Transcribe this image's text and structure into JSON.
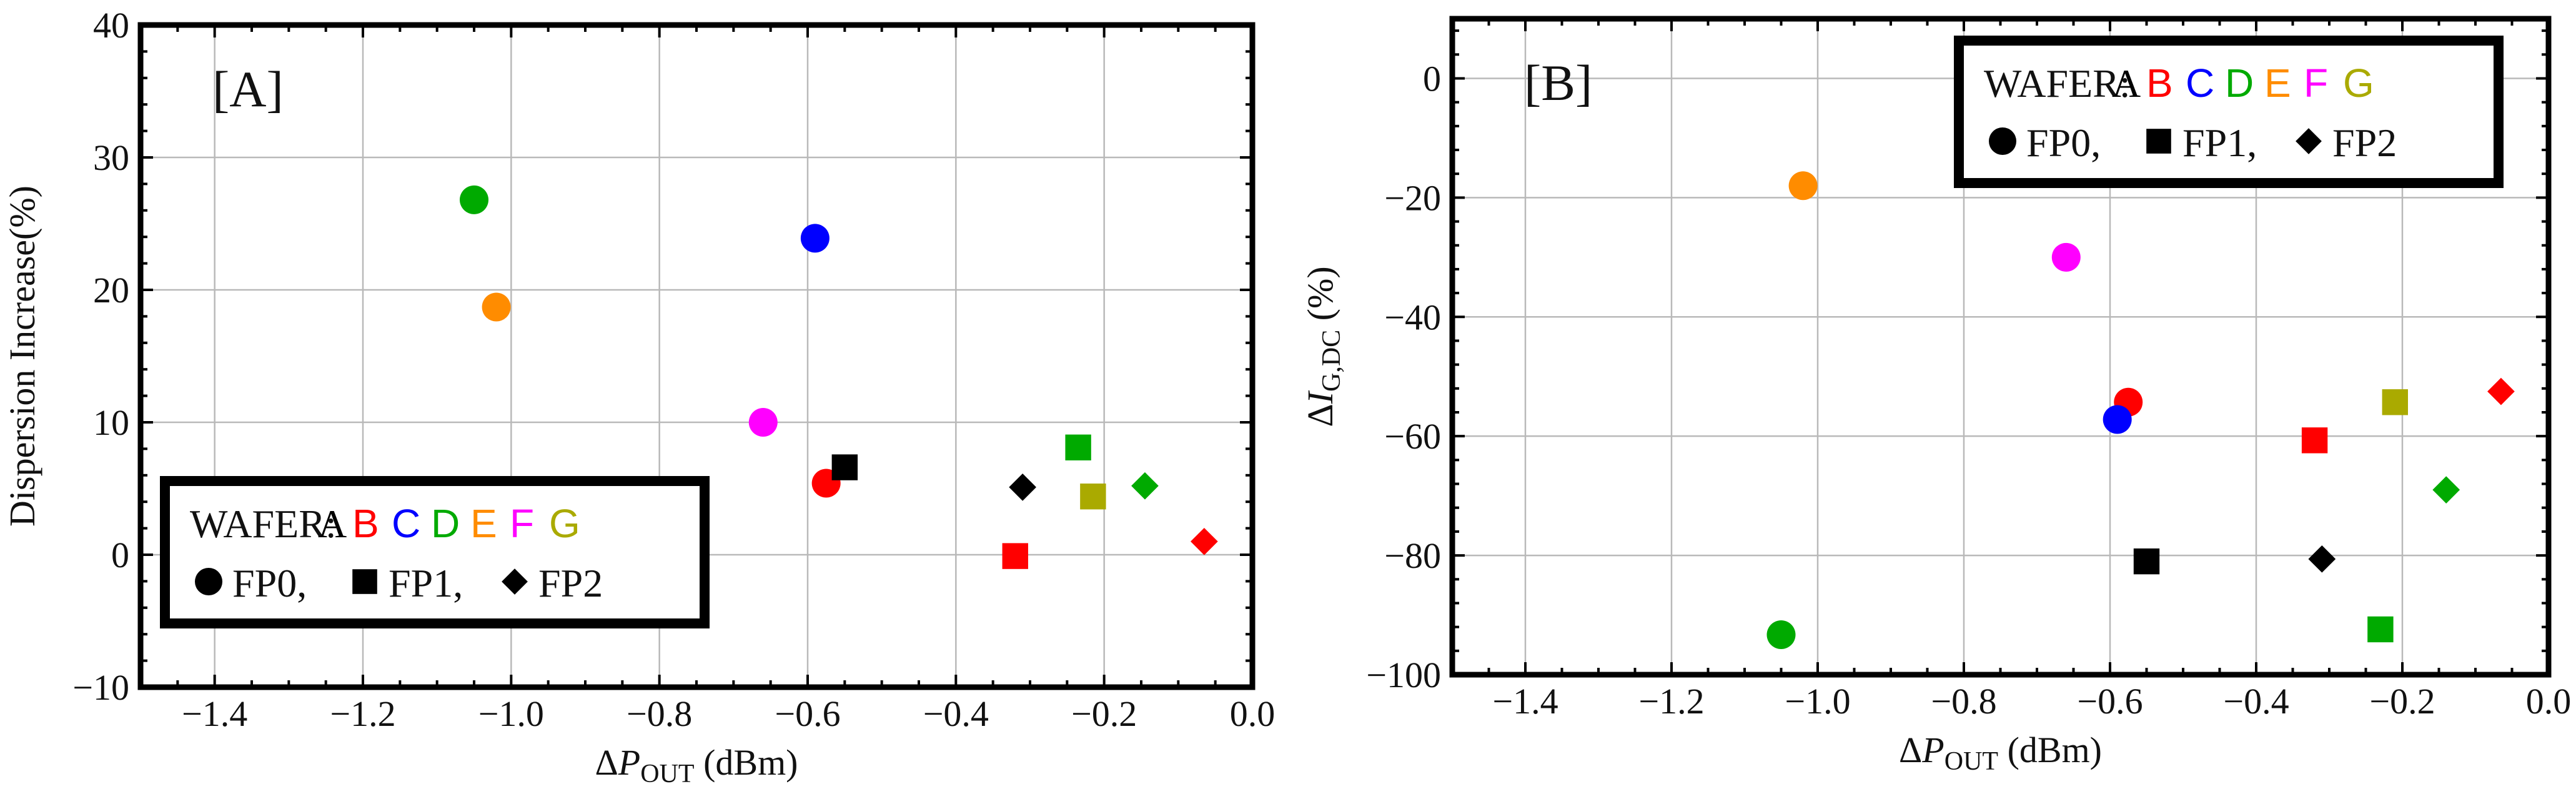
{
  "chart_data": [
    {
      "type": "scatter",
      "panel_label": "[A]",
      "xlabel": {
        "prefix": "ΔP",
        "sub": "OUT",
        "suffix": " (dBm)"
      },
      "ylabel": "Dispersion Increase(%)",
      "xlim": [
        -1.5,
        0.0
      ],
      "ylim": [
        -10,
        40
      ],
      "xticks": [
        -1.4,
        -1.2,
        -1.0,
        -0.8,
        -0.6,
        -0.4,
        -0.2,
        0.0
      ],
      "xtick_labels": [
        "−1.4",
        "−1.2",
        "−1.0",
        "−0.8",
        "−0.6",
        "−0.4",
        "−0.2",
        "0.0"
      ],
      "yticks": [
        -10,
        0,
        10,
        20,
        30,
        40
      ],
      "ytick_labels": [
        "−10",
        "0",
        "10",
        "20",
        "30",
        "40"
      ],
      "grid": true,
      "legend": {
        "placement": "bottom-left",
        "wafer_label": "WAFER:",
        "wafers": [
          "A",
          "B",
          "C",
          "D",
          "E",
          "F",
          "G"
        ],
        "markers": [
          {
            "shape": "circle",
            "label": "FP0,"
          },
          {
            "shape": "square",
            "label": "FP1,"
          },
          {
            "shape": "diamond",
            "label": "FP2"
          }
        ]
      },
      "points": [
        {
          "wafer": "D",
          "fp": "FP0",
          "shape": "circle",
          "x": -1.05,
          "y": 26.8
        },
        {
          "wafer": "E",
          "fp": "FP0",
          "shape": "circle",
          "x": -1.02,
          "y": 18.7
        },
        {
          "wafer": "C",
          "fp": "FP0",
          "shape": "circle",
          "x": -0.59,
          "y": 23.9
        },
        {
          "wafer": "F",
          "fp": "FP0",
          "shape": "circle",
          "x": -0.66,
          "y": 10.0
        },
        {
          "wafer": "B",
          "fp": "FP0",
          "shape": "circle",
          "x": -0.575,
          "y": 5.4
        },
        {
          "wafer": "A",
          "fp": "FP1",
          "shape": "square",
          "x": -0.55,
          "y": 6.6
        },
        {
          "wafer": "B",
          "fp": "FP1",
          "shape": "square",
          "x": -0.32,
          "y": -0.1
        },
        {
          "wafer": "D",
          "fp": "FP1",
          "shape": "square",
          "x": -0.235,
          "y": 8.1
        },
        {
          "wafer": "G",
          "fp": "FP1",
          "shape": "square",
          "x": -0.215,
          "y": 4.4
        },
        {
          "wafer": "A",
          "fp": "FP2",
          "shape": "diamond",
          "x": -0.31,
          "y": 5.1
        },
        {
          "wafer": "D",
          "fp": "FP2",
          "shape": "diamond",
          "x": -0.145,
          "y": 5.2
        },
        {
          "wafer": "B",
          "fp": "FP2",
          "shape": "diamond",
          "x": -0.065,
          "y": 1.0
        }
      ]
    },
    {
      "type": "scatter",
      "panel_label": "[B]",
      "xlabel": {
        "prefix": "ΔP",
        "sub": "OUT",
        "suffix": " (dBm)"
      },
      "ylabel": {
        "prefix": "ΔI",
        "sub": "G,DC",
        "suffix": " (%)"
      },
      "xlim": [
        -1.5,
        0.0
      ],
      "ylim": [
        -100,
        10
      ],
      "xticks": [
        -1.4,
        -1.2,
        -1.0,
        -0.8,
        -0.6,
        -0.4,
        -0.2,
        0.0
      ],
      "xtick_labels": [
        "−1.4",
        "−1.2",
        "−1.0",
        "−0.8",
        "−0.6",
        "−0.4",
        "−0.2",
        "0.0"
      ],
      "yticks": [
        -100,
        -80,
        -60,
        -40,
        -20,
        0
      ],
      "ytick_labels": [
        "−100",
        "−80",
        "−60",
        "−40",
        "−20",
        "0"
      ],
      "grid": true,
      "legend": {
        "placement": "top-right",
        "wafer_label": "WAFER:",
        "wafers": [
          "A",
          "B",
          "C",
          "D",
          "E",
          "F",
          "G"
        ],
        "markers": [
          {
            "shape": "circle",
            "label": "FP0,"
          },
          {
            "shape": "square",
            "label": "FP1,"
          },
          {
            "shape": "diamond",
            "label": "FP2"
          }
        ]
      },
      "points": [
        {
          "wafer": "E",
          "fp": "FP0",
          "shape": "circle",
          "x": -1.02,
          "y": -18.0
        },
        {
          "wafer": "F",
          "fp": "FP0",
          "shape": "circle",
          "x": -0.66,
          "y": -30.0
        },
        {
          "wafer": "B",
          "fp": "FP0",
          "shape": "circle",
          "x": -0.575,
          "y": -54.3
        },
        {
          "wafer": "C",
          "fp": "FP0",
          "shape": "circle",
          "x": -0.59,
          "y": -57.2
        },
        {
          "wafer": "D",
          "fp": "FP0",
          "shape": "circle",
          "x": -1.05,
          "y": -93.3
        },
        {
          "wafer": "A",
          "fp": "FP1",
          "shape": "square",
          "x": -0.55,
          "y": -81.0
        },
        {
          "wafer": "B",
          "fp": "FP1",
          "shape": "square",
          "x": -0.32,
          "y": -60.7
        },
        {
          "wafer": "G",
          "fp": "FP1",
          "shape": "square",
          "x": -0.21,
          "y": -54.3
        },
        {
          "wafer": "D",
          "fp": "FP1",
          "shape": "square",
          "x": -0.23,
          "y": -92.4
        },
        {
          "wafer": "A",
          "fp": "FP2",
          "shape": "diamond",
          "x": -0.31,
          "y": -80.6
        },
        {
          "wafer": "D",
          "fp": "FP2",
          "shape": "diamond",
          "x": -0.14,
          "y": -69.0
        },
        {
          "wafer": "B",
          "fp": "FP2",
          "shape": "diamond",
          "x": -0.065,
          "y": -52.5
        }
      ]
    }
  ],
  "wafer_colors": {
    "A": "#000000",
    "B": "#ff0000",
    "C": "#0000ff",
    "D": "#00aa00",
    "E": "#ff8c00",
    "F": "#ff00ff",
    "G": "#aaaa00"
  }
}
